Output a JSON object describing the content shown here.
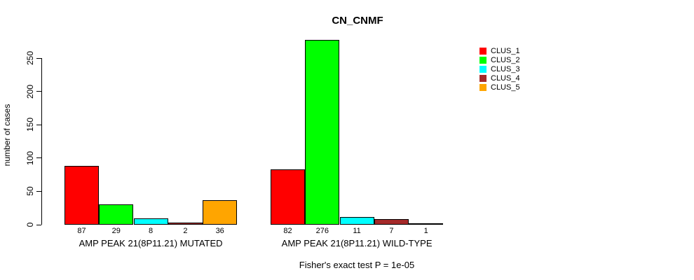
{
  "chart_data": {
    "type": "bar",
    "title": "CN_CNMF",
    "ylabel": "number of cases",
    "xlabel": "",
    "ylim": [
      0,
      250
    ],
    "yticks": [
      0,
      50,
      100,
      150,
      200,
      250
    ],
    "grid": false,
    "legend_position": "top-right",
    "categories": [
      "AMP PEAK 21(8P11.21) MUTATED",
      "AMP PEAK 21(8P11.21) WILD-TYPE"
    ],
    "series": [
      {
        "name": "CLUS_1",
        "color": "#FF0000",
        "values": [
          87,
          82
        ]
      },
      {
        "name": "CLUS_2",
        "color": "#00FF00",
        "values": [
          29,
          276
        ]
      },
      {
        "name": "CLUS_3",
        "color": "#00FFFF",
        "values": [
          8,
          11
        ]
      },
      {
        "name": "CLUS_4",
        "color": "#A52A2A",
        "values": [
          2,
          7
        ]
      },
      {
        "name": "CLUS_5",
        "color": "#FFA500",
        "values": [
          36,
          1
        ]
      }
    ],
    "bar_value_labels": {
      "AMP PEAK 21(8P11.21) MUTATED": [
        87,
        29,
        8,
        2,
        36
      ],
      "AMP PEAK 21(8P11.21) WILD-TYPE": [
        82,
        276,
        11,
        7,
        1
      ]
    },
    "annotation": "Fisher's exact test P = 1e-05"
  },
  "colors": {
    "axis": "#000000",
    "text": "#000000",
    "background": "#FFFFFF",
    "bar_border": "#000000"
  }
}
